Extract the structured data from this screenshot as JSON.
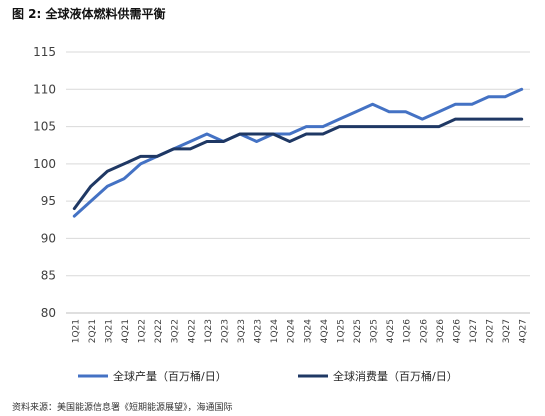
{
  "figure_title": "图 2:  全球液体燃料供需平衡",
  "source_note": "资料来源：美国能源信息署《短期能源展望》，海通国际",
  "chart_data": {
    "type": "line",
    "categories": [
      "1Q21",
      "2Q21",
      "3Q21",
      "4Q21",
      "1Q22",
      "2Q22",
      "3Q22",
      "4Q22",
      "1Q23",
      "2Q23",
      "3Q23",
      "4Q23",
      "1Q24",
      "2Q24",
      "3Q24",
      "4Q24",
      "1Q25",
      "2Q25",
      "3Q25",
      "4Q25",
      "1Q26",
      "2Q26",
      "3Q26",
      "4Q26",
      "1Q27",
      "2Q27",
      "3Q27",
      "4Q27"
    ],
    "series": [
      {
        "name": "全球产量（百万桶/日）",
        "color": "#4472C4",
        "values": [
          93,
          95,
          97,
          98,
          100,
          101,
          102,
          103,
          104,
          103,
          104,
          103,
          104,
          104,
          105,
          105,
          106,
          107,
          108,
          107,
          107,
          106,
          107,
          108,
          108,
          109,
          109,
          110
        ]
      },
      {
        "name": "全球消费量（百万桶/日）",
        "color": "#1F3864",
        "values": [
          94,
          97,
          99,
          100,
          101,
          101,
          102,
          102,
          103,
          103,
          104,
          104,
          104,
          103,
          104,
          104,
          105,
          105,
          105,
          105,
          105,
          105,
          105,
          106,
          106,
          106,
          106,
          106
        ]
      }
    ],
    "ylim": [
      80,
      115
    ],
    "yticks": [
      80,
      85,
      90,
      95,
      100,
      105,
      110,
      115
    ],
    "grid": true,
    "legend_position": "bottom"
  }
}
